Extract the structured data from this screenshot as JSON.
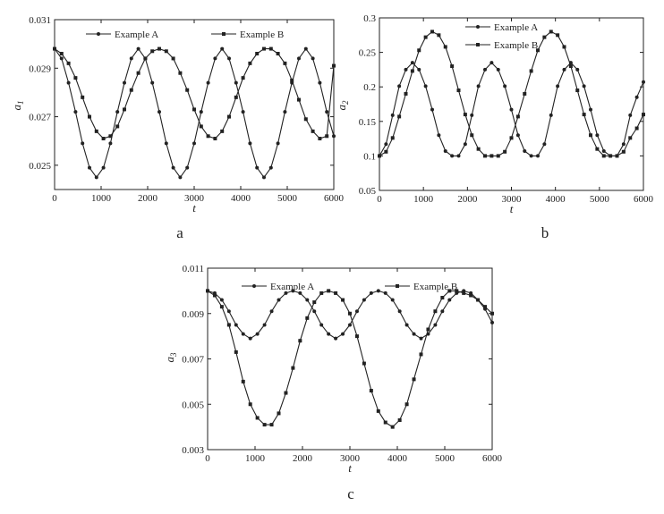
{
  "chart_data": [
    {
      "panel": "a",
      "type": "line",
      "xlabel": "t",
      "ylabel": "a1",
      "ylabel_base": "a",
      "ylabel_sub": "1",
      "xlim": [
        0,
        6000
      ],
      "ylim": [
        0.024,
        0.031
      ],
      "xticks": [
        "0",
        "1000",
        "2000",
        "3000",
        "4000",
        "5000",
        "6000"
      ],
      "xtick_values": [
        0,
        1000,
        2000,
        3000,
        4000,
        5000,
        6000
      ],
      "yticks": [
        "0.025",
        "0.027",
        "0.029",
        "0.031"
      ],
      "ytick_values": [
        0.025,
        0.027,
        0.029,
        0.031
      ],
      "legend": [
        "Example A",
        "Example B"
      ],
      "series": [
        {
          "name": "Example A",
          "marker": "dot",
          "x": [
            0,
            150,
            300,
            450,
            600,
            750,
            900,
            1050,
            1200,
            1350,
            1500,
            1650,
            1800,
            1950,
            2100,
            2250,
            2400,
            2550,
            2700,
            2850,
            3000,
            3150,
            3300,
            3450,
            3600,
            3750,
            3900,
            4050,
            4200,
            4350,
            4500,
            4650,
            4800,
            4950,
            5100,
            5250,
            5400,
            5550,
            5700,
            5850,
            6000
          ],
          "y": [
            0.0298,
            0.0294,
            0.0284,
            0.0272,
            0.0259,
            0.0249,
            0.0245,
            0.0249,
            0.0259,
            0.0272,
            0.0284,
            0.0294,
            0.0298,
            0.0294,
            0.0284,
            0.0272,
            0.0259,
            0.0249,
            0.0245,
            0.0249,
            0.0259,
            0.0272,
            0.0284,
            0.0294,
            0.0298,
            0.0294,
            0.0284,
            0.0272,
            0.0259,
            0.0249,
            0.0245,
            0.0249,
            0.0259,
            0.0272,
            0.0284,
            0.0294,
            0.0298,
            0.0294,
            0.0284,
            0.0272,
            0.0262
          ]
        },
        {
          "name": "Example B",
          "marker": "square",
          "x": [
            0,
            150,
            300,
            450,
            600,
            750,
            900,
            1050,
            1200,
            1350,
            1500,
            1650,
            1800,
            1950,
            2100,
            2250,
            2400,
            2550,
            2700,
            2850,
            3000,
            3150,
            3300,
            3450,
            3600,
            3750,
            3900,
            4050,
            4200,
            4350,
            4500,
            4650,
            4800,
            4950,
            5100,
            5250,
            5400,
            5550,
            5700,
            5850,
            6000
          ],
          "y": [
            0.0298,
            0.0296,
            0.0292,
            0.0286,
            0.0278,
            0.027,
            0.0264,
            0.0261,
            0.0262,
            0.0266,
            0.0273,
            0.0281,
            0.0288,
            0.0294,
            0.0297,
            0.0298,
            0.0297,
            0.0294,
            0.0288,
            0.0281,
            0.0273,
            0.0266,
            0.0262,
            0.0261,
            0.0264,
            0.027,
            0.0278,
            0.0286,
            0.0292,
            0.0296,
            0.0298,
            0.0298,
            0.0296,
            0.0292,
            0.0285,
            0.0277,
            0.0269,
            0.0264,
            0.0261,
            0.0262,
            0.0291
          ]
        }
      ]
    },
    {
      "panel": "b",
      "type": "line",
      "xlabel": "t",
      "ylabel": "a2",
      "ylabel_base": "a",
      "ylabel_sub": "2",
      "xlim": [
        0,
        6000
      ],
      "ylim": [
        0.05,
        0.3
      ],
      "xticks": [
        "0",
        "1000",
        "2000",
        "3000",
        "4000",
        "5000",
        "6000"
      ],
      "xtick_values": [
        0,
        1000,
        2000,
        3000,
        4000,
        5000,
        6000
      ],
      "yticks": [
        "0.05",
        "0.1",
        "0.15",
        "0.2",
        "0.25",
        "0.3"
      ],
      "ytick_values": [
        0.05,
        0.1,
        0.15,
        0.2,
        0.25,
        0.3
      ],
      "legend": [
        "Example A",
        "Example B"
      ],
      "series": [
        {
          "name": "Example A",
          "marker": "dot",
          "x": [
            0,
            150,
            300,
            450,
            600,
            750,
            900,
            1050,
            1200,
            1350,
            1500,
            1650,
            1800,
            1950,
            2100,
            2250,
            2400,
            2550,
            2700,
            2850,
            3000,
            3150,
            3300,
            3450,
            3600,
            3750,
            3900,
            4050,
            4200,
            4350,
            4500,
            4650,
            4800,
            4950,
            5100,
            5250,
            5400,
            5550,
            5700,
            5850,
            6000
          ],
          "y": [
            0.1,
            0.117,
            0.159,
            0.201,
            0.225,
            0.235,
            0.225,
            0.201,
            0.167,
            0.13,
            0.107,
            0.1,
            0.1,
            0.117,
            0.159,
            0.201,
            0.225,
            0.235,
            0.225,
            0.201,
            0.167,
            0.13,
            0.107,
            0.1,
            0.1,
            0.117,
            0.159,
            0.201,
            0.225,
            0.235,
            0.225,
            0.201,
            0.167,
            0.13,
            0.107,
            0.1,
            0.1,
            0.117,
            0.159,
            0.185,
            0.207
          ]
        },
        {
          "name": "Example B",
          "marker": "square",
          "x": [
            0,
            150,
            300,
            450,
            600,
            750,
            900,
            1050,
            1200,
            1350,
            1500,
            1650,
            1800,
            1950,
            2100,
            2250,
            2400,
            2550,
            2700,
            2850,
            3000,
            3150,
            3300,
            3450,
            3600,
            3750,
            3900,
            4050,
            4200,
            4350,
            4500,
            4650,
            4800,
            4950,
            5100,
            5250,
            5400,
            5550,
            5700,
            5850,
            6000
          ],
          "y": [
            0.1,
            0.106,
            0.126,
            0.157,
            0.19,
            0.223,
            0.253,
            0.272,
            0.28,
            0.275,
            0.258,
            0.23,
            0.195,
            0.16,
            0.13,
            0.11,
            0.1,
            0.1,
            0.1,
            0.106,
            0.126,
            0.157,
            0.19,
            0.223,
            0.253,
            0.272,
            0.28,
            0.275,
            0.258,
            0.23,
            0.195,
            0.16,
            0.13,
            0.11,
            0.1,
            0.1,
            0.1,
            0.106,
            0.126,
            0.14,
            0.16
          ]
        }
      ]
    },
    {
      "panel": "c",
      "type": "line",
      "xlabel": "t",
      "ylabel": "a3",
      "ylabel_base": "a",
      "ylabel_sub": "3",
      "xlim": [
        0,
        6000
      ],
      "ylim": [
        0.003,
        0.011
      ],
      "xticks": [
        "0",
        "1000",
        "2000",
        "3000",
        "4000",
        "5000",
        "6000"
      ],
      "xtick_values": [
        0,
        1000,
        2000,
        3000,
        4000,
        5000,
        6000
      ],
      "yticks": [
        "0.003",
        "0.005",
        "0.007",
        "0.009",
        "0.011"
      ],
      "ytick_values": [
        0.003,
        0.005,
        0.007,
        0.009,
        0.011
      ],
      "legend": [
        "Example A",
        "Example B"
      ],
      "series": [
        {
          "name": "Example A",
          "marker": "dot",
          "x": [
            0,
            150,
            300,
            450,
            600,
            750,
            900,
            1050,
            1200,
            1350,
            1500,
            1650,
            1800,
            1950,
            2100,
            2250,
            2400,
            2550,
            2700,
            2850,
            3000,
            3150,
            3300,
            3450,
            3600,
            3750,
            3900,
            4050,
            4200,
            4350,
            4500,
            4650,
            4800,
            4950,
            5100,
            5250,
            5400,
            5550,
            5700,
            5850,
            6000
          ],
          "y": [
            0.01,
            0.0099,
            0.0096,
            0.0091,
            0.0085,
            0.0081,
            0.0079,
            0.0081,
            0.0085,
            0.0091,
            0.0096,
            0.0099,
            0.01,
            0.0099,
            0.0096,
            0.0091,
            0.0085,
            0.0081,
            0.0079,
            0.0081,
            0.0085,
            0.0091,
            0.0096,
            0.0099,
            0.01,
            0.0099,
            0.0096,
            0.0091,
            0.0085,
            0.0081,
            0.0079,
            0.0081,
            0.0085,
            0.0091,
            0.0096,
            0.0099,
            0.01,
            0.0099,
            0.0096,
            0.0092,
            0.0086
          ]
        },
        {
          "name": "Example B",
          "marker": "square",
          "x": [
            0,
            150,
            300,
            450,
            600,
            750,
            900,
            1050,
            1200,
            1350,
            1500,
            1650,
            1800,
            1950,
            2100,
            2250,
            2400,
            2550,
            2700,
            2850,
            3000,
            3150,
            3300,
            3450,
            3600,
            3750,
            3900,
            4050,
            4200,
            4350,
            4500,
            4650,
            4800,
            4950,
            5100,
            5250,
            5400,
            5550,
            5700,
            5850,
            6000
          ],
          "y": [
            0.01,
            0.0098,
            0.0093,
            0.0085,
            0.0073,
            0.006,
            0.005,
            0.0044,
            0.0041,
            0.0041,
            0.0046,
            0.0055,
            0.0066,
            0.0078,
            0.0088,
            0.0095,
            0.0099,
            0.01,
            0.0099,
            0.0096,
            0.009,
            0.008,
            0.0068,
            0.0056,
            0.0047,
            0.0042,
            0.004,
            0.0043,
            0.005,
            0.0061,
            0.0072,
            0.0083,
            0.0091,
            0.0097,
            0.01,
            0.01,
            0.0099,
            0.0098,
            0.0096,
            0.0093,
            0.009
          ]
        }
      ]
    }
  ],
  "captions": [
    "a",
    "b",
    "c"
  ]
}
